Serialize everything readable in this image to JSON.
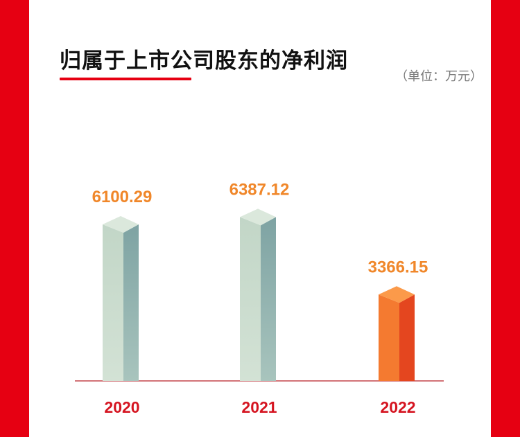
{
  "header": {
    "title": "归属于上市公司股东的净利润",
    "unit": "（单位：万元）"
  },
  "colors": {
    "frame": "#e60012",
    "value_label": "#f0872a",
    "year_label": "#d51420",
    "baseline": "#c4444a",
    "bar_normal_front_top": "#c2d6c7",
    "bar_normal_front_bottom": "#d3e2d5",
    "bar_normal_side": "#7ea3a3",
    "bar_normal_top": "#dbe8dc",
    "bar_highlight_front": "#f47a30",
    "bar_highlight_side": "#e4461f",
    "bar_highlight_top": "#fb9a4a"
  },
  "chart_data": {
    "type": "bar",
    "categories": [
      "2020",
      "2021",
      "2022"
    ],
    "values": [
      6100.29,
      6387.12,
      3366.15
    ],
    "value_labels": [
      "6100.29",
      "6387.12",
      "3366.15"
    ],
    "highlight_index": 2,
    "title": "归属于上市公司股东的净利润",
    "ylabel": "（单位：万元）",
    "ylim": [
      0,
      7000
    ],
    "grid": false
  }
}
